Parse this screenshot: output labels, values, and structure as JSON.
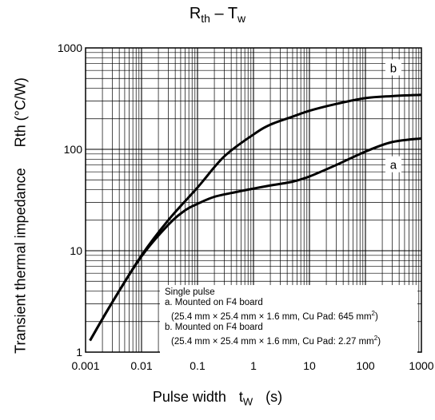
{
  "chart_data": {
    "type": "line",
    "title": "Rth – Tw",
    "title_main": "R",
    "title_sub": "th",
    "title_dash": " – T",
    "title_sub2": "w",
    "xlabel": "Pulse width",
    "xlabel_sym": "t",
    "xlabel_sym_sub": "W",
    "xlabel_unit": "(s)",
    "ylabel": "Transient thermal impedance",
    "ylabel_sym": "Rth (°C/W)",
    "x_scale": "log",
    "y_scale": "log",
    "xlim": [
      0.001,
      1000
    ],
    "ylim": [
      1,
      1000
    ],
    "x_ticks": [
      "0.001",
      "0.01",
      "0.1",
      "1",
      "10",
      "100",
      "1000"
    ],
    "y_ticks": [
      "1",
      "10",
      "100",
      "1000"
    ],
    "grid": true,
    "series": [
      {
        "name": "a",
        "x": [
          0.0012,
          0.003,
          0.01,
          0.03,
          0.06,
          0.1,
          0.2,
          0.5,
          1,
          2,
          5,
          10,
          30,
          100,
          300,
          1000
        ],
        "y": [
          1.3,
          3.1,
          8.8,
          18,
          25,
          29,
          34,
          38,
          41,
          44,
          48,
          54,
          70,
          95,
          118,
          128
        ]
      },
      {
        "name": "b",
        "x": [
          0.0012,
          0.003,
          0.01,
          0.03,
          0.1,
          0.3,
          1,
          2,
          5,
          10,
          30,
          100,
          300,
          1000
        ],
        "y": [
          1.3,
          3.1,
          9,
          20,
          42,
          85,
          140,
          175,
          210,
          240,
          280,
          320,
          335,
          345
        ]
      }
    ],
    "annotations": [
      {
        "label": "a",
        "target_series": "a",
        "x": 316,
        "y": 70
      },
      {
        "label": "b",
        "target_series": "b",
        "x": 316,
        "y": 630
      }
    ],
    "legend": {
      "placement": "bottom-right",
      "line1": "Single pulse",
      "line2": "a. Mounted on F4 board",
      "line3": "(25.4 mm × 25.4 mm × 1.6 mm, Cu Pad: 645 mm",
      "line3_sup": "2",
      "line3_end": ")",
      "line4": "b. Mounted on F4 board",
      "line5": "(25.4 mm × 25.4 mm × 1.6 mm, Cu Pad: 2.27 mm",
      "line5_sup": "2",
      "line5_end": ")"
    },
    "colors": {
      "line": "#000000",
      "grid": "#000000",
      "background": "#ffffff"
    }
  }
}
